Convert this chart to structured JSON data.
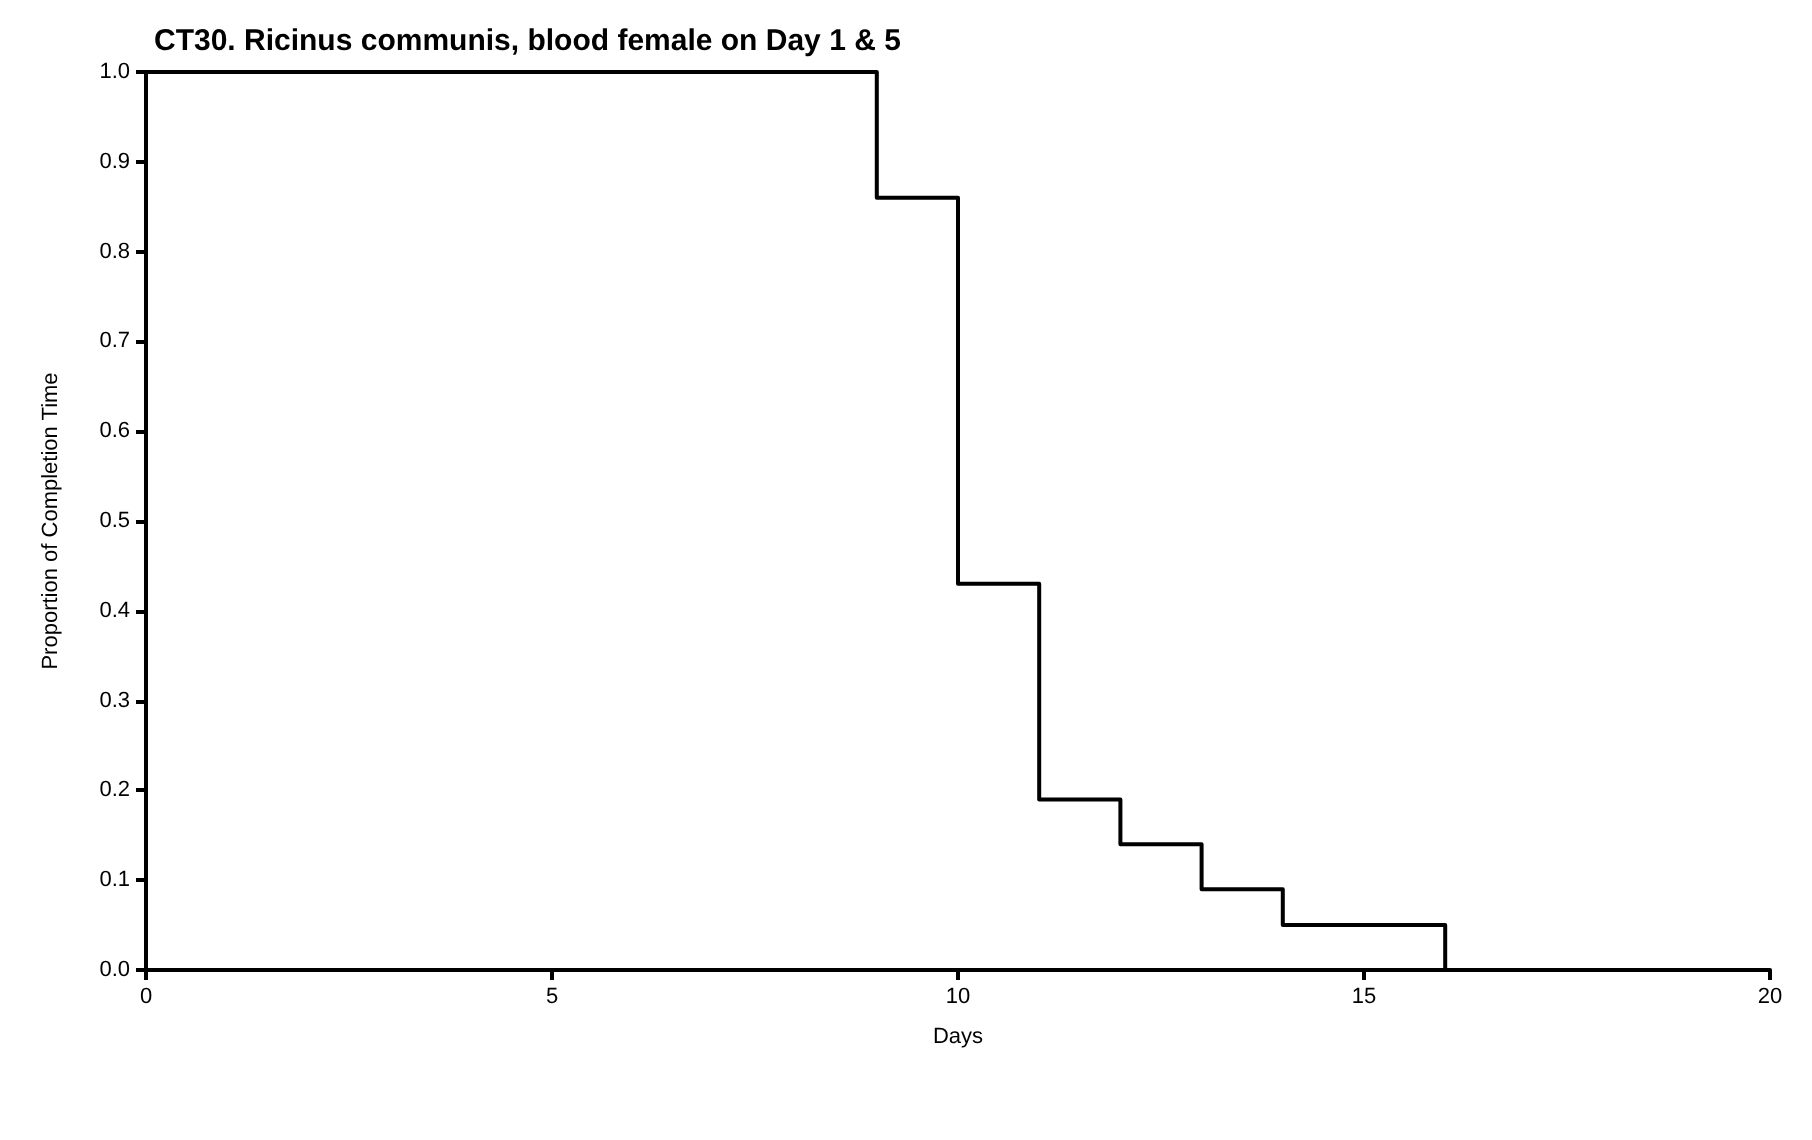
{
  "chart_data": {
    "type": "step",
    "title": "CT30. Ricinus communis, blood female on Day 1 & 5",
    "xlabel": "Days",
    "ylabel": "Proportion of Completion Time",
    "x": [
      0,
      9,
      10,
      11,
      12,
      13,
      14,
      16
    ],
    "series": [
      {
        "color": "#000000",
        "values": [
          1,
          0.86,
          0.43,
          0.19,
          0.14,
          0.09,
          0.05,
          0
        ]
      }
    ],
    "xlim": [
      0,
      20
    ],
    "xticks": [
      0,
      5,
      10,
      15,
      20
    ],
    "ylim": [
      0,
      1
    ],
    "yticks": [
      {
        "value": 0,
        "label": "0.0"
      },
      0.1,
      0.2,
      0.3,
      0.4,
      0.5,
      0.6,
      0.7,
      0.8,
      0.9,
      {
        "value": 1,
        "label": "1.0"
      }
    ],
    "grid": false,
    "marker": "none",
    "line_style": "solid"
  }
}
